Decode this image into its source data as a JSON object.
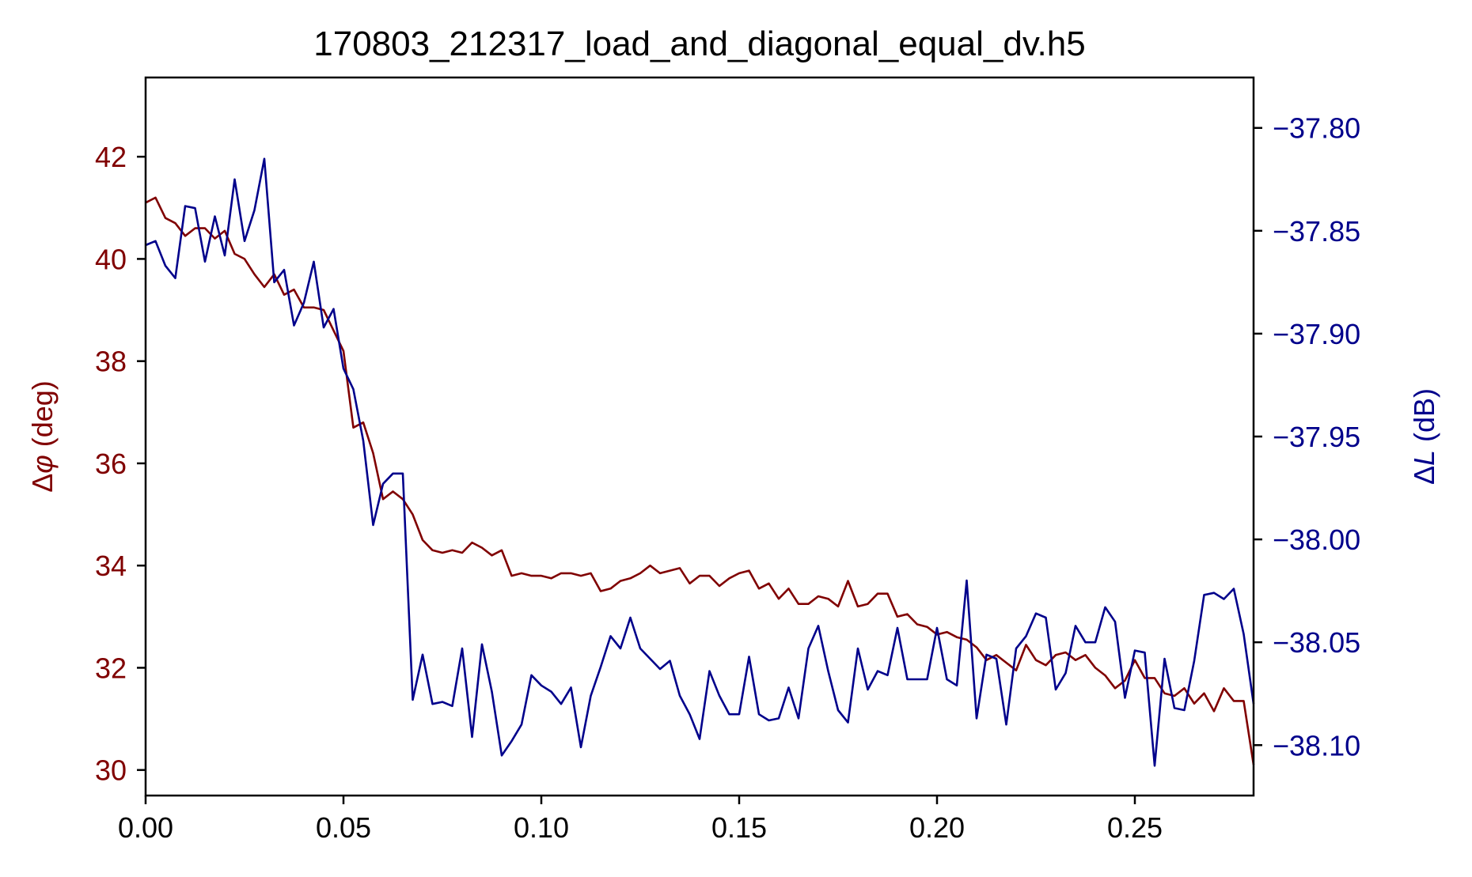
{
  "chart_data": {
    "type": "line",
    "title": "170803_212317_load_and_diagonal_equal_dv.h5",
    "xlabel": "",
    "xlim": [
      0.0,
      0.28
    ],
    "x_ticks": [
      "0.00",
      "0.05",
      "0.10",
      "0.15",
      "0.20",
      "0.25"
    ],
    "y_left": {
      "label": "Δφ (deg)",
      "label_delta": "Δ",
      "label_symbol": "φ",
      "label_unit": " (deg)",
      "ylim": [
        29.5,
        43.55
      ],
      "ticks": [
        "30",
        "32",
        "34",
        "36",
        "38",
        "40",
        "42"
      ],
      "color": "#800000"
    },
    "y_right": {
      "label": "ΔL (dB)",
      "label_delta": "Δ",
      "label_symbol": "L",
      "label_unit": " (dB)",
      "ylim": [
        -38.1245,
        -37.7755
      ],
      "ticks": [
        "−37.80",
        "−37.85",
        "−37.90",
        "−37.95",
        "−38.00",
        "−38.05",
        "−38.10"
      ],
      "color": "#00008b"
    },
    "series": [
      {
        "axis": "left",
        "color": "#800000",
        "x": [
          0.0,
          0.0025,
          0.005,
          0.0075,
          0.01,
          0.0125,
          0.015,
          0.0175,
          0.02,
          0.0225,
          0.025,
          0.0275,
          0.03,
          0.0325,
          0.035,
          0.0375,
          0.04,
          0.0425,
          0.045,
          0.0475,
          0.05,
          0.0525,
          0.055,
          0.0575,
          0.06,
          0.0625,
          0.065,
          0.0675,
          0.07,
          0.0725,
          0.075,
          0.0775,
          0.08,
          0.0825,
          0.085,
          0.0875,
          0.09,
          0.0925,
          0.095,
          0.0975,
          0.1,
          0.1025,
          0.105,
          0.1075,
          0.11,
          0.1125,
          0.115,
          0.1175,
          0.12,
          0.1225,
          0.125,
          0.1275,
          0.13,
          0.1325,
          0.135,
          0.1375,
          0.14,
          0.1425,
          0.145,
          0.1475,
          0.15,
          0.1525,
          0.155,
          0.1575,
          0.16,
          0.1625,
          0.165,
          0.1675,
          0.17,
          0.1725,
          0.175,
          0.1775,
          0.18,
          0.1825,
          0.185,
          0.1875,
          0.19,
          0.1925,
          0.195,
          0.1975,
          0.2,
          0.2025,
          0.205,
          0.2075,
          0.21,
          0.2125,
          0.215,
          0.2175,
          0.22,
          0.2225,
          0.225,
          0.2275,
          0.23,
          0.2325,
          0.235,
          0.2375,
          0.24,
          0.2425,
          0.245,
          0.2475,
          0.25,
          0.2525,
          0.255,
          0.2575,
          0.26,
          0.2625,
          0.265,
          0.2675,
          0.27,
          0.2725,
          0.275,
          0.2775,
          0.28
        ],
        "y": [
          41.1,
          41.2,
          40.8,
          40.7,
          40.45,
          40.6,
          40.6,
          40.4,
          40.55,
          40.1,
          40.0,
          39.7,
          39.45,
          39.7,
          39.3,
          39.4,
          39.05,
          39.05,
          39.0,
          38.6,
          38.2,
          36.7,
          36.8,
          36.2,
          35.3,
          35.45,
          35.3,
          35.0,
          34.5,
          34.3,
          34.25,
          34.3,
          34.25,
          34.45,
          34.35,
          34.2,
          34.3,
          33.8,
          33.85,
          33.8,
          33.8,
          33.75,
          33.85,
          33.85,
          33.8,
          33.85,
          33.5,
          33.55,
          33.7,
          33.75,
          33.85,
          34.0,
          33.85,
          33.9,
          33.95,
          33.65,
          33.8,
          33.8,
          33.6,
          33.75,
          33.85,
          33.9,
          33.55,
          33.65,
          33.35,
          33.55,
          33.25,
          33.25,
          33.4,
          33.35,
          33.2,
          33.7,
          33.2,
          33.25,
          33.45,
          33.45,
          33.0,
          33.05,
          32.85,
          32.8,
          32.65,
          32.7,
          32.6,
          32.55,
          32.4,
          32.15,
          32.25,
          32.1,
          31.95,
          32.45,
          32.15,
          32.05,
          32.25,
          32.3,
          32.15,
          32.25,
          32.0,
          31.85,
          31.6,
          31.75,
          32.15,
          31.8,
          31.8,
          31.5,
          31.45,
          31.6,
          31.3,
          31.5,
          31.15,
          31.6,
          31.35,
          31.35,
          30.1
        ]
      },
      {
        "axis": "right",
        "color": "#00008b",
        "x": [
          0.0,
          0.0025,
          0.005,
          0.0075,
          0.01,
          0.0125,
          0.015,
          0.0175,
          0.02,
          0.0225,
          0.025,
          0.0275,
          0.03,
          0.0325,
          0.035,
          0.0375,
          0.04,
          0.0425,
          0.045,
          0.0475,
          0.05,
          0.0525,
          0.055,
          0.0575,
          0.06,
          0.0625,
          0.065,
          0.0675,
          0.07,
          0.0725,
          0.075,
          0.0775,
          0.08,
          0.0825,
          0.085,
          0.0875,
          0.09,
          0.0925,
          0.095,
          0.0975,
          0.1,
          0.1025,
          0.105,
          0.1075,
          0.11,
          0.1125,
          0.115,
          0.1175,
          0.12,
          0.1225,
          0.125,
          0.1275,
          0.13,
          0.1325,
          0.135,
          0.1375,
          0.14,
          0.1425,
          0.145,
          0.1475,
          0.15,
          0.1525,
          0.155,
          0.1575,
          0.16,
          0.1625,
          0.165,
          0.1675,
          0.17,
          0.1725,
          0.175,
          0.1775,
          0.18,
          0.1825,
          0.185,
          0.1875,
          0.19,
          0.1925,
          0.195,
          0.1975,
          0.2,
          0.2025,
          0.205,
          0.2075,
          0.21,
          0.2125,
          0.215,
          0.2175,
          0.22,
          0.2225,
          0.225,
          0.2275,
          0.23,
          0.2325,
          0.235,
          0.2375,
          0.24,
          0.2425,
          0.245,
          0.2475,
          0.25,
          0.2525,
          0.255,
          0.2575,
          0.26,
          0.2625,
          0.265,
          0.2675,
          0.27,
          0.2725,
          0.275,
          0.2775,
          0.28
        ],
        "y": [
          -37.857,
          -37.855,
          -37.867,
          -37.873,
          -37.838,
          -37.839,
          -37.865,
          -37.843,
          -37.862,
          -37.825,
          -37.855,
          -37.84,
          -37.815,
          -37.875,
          -37.869,
          -37.896,
          -37.885,
          -37.865,
          -37.897,
          -37.888,
          -37.917,
          -37.927,
          -37.952,
          -37.993,
          -37.973,
          -37.968,
          -37.968,
          -38.078,
          -38.056,
          -38.08,
          -38.079,
          -38.081,
          -38.053,
          -38.096,
          -38.051,
          -38.074,
          -38.105,
          -38.098,
          -38.09,
          -38.066,
          -38.071,
          -38.074,
          -38.08,
          -38.072,
          -38.101,
          -38.076,
          -38.062,
          -38.047,
          -38.053,
          -38.038,
          -38.053,
          -38.058,
          -38.063,
          -38.059,
          -38.076,
          -38.085,
          -38.097,
          -38.064,
          -38.076,
          -38.085,
          -38.085,
          -38.057,
          -38.085,
          -38.088,
          -38.087,
          -38.072,
          -38.087,
          -38.053,
          -38.042,
          -38.064,
          -38.083,
          -38.089,
          -38.053,
          -38.073,
          -38.064,
          -38.066,
          -38.043,
          -38.068,
          -38.068,
          -38.068,
          -38.043,
          -38.068,
          -38.071,
          -38.02,
          -38.087,
          -38.056,
          -38.058,
          -38.09,
          -38.053,
          -38.047,
          -38.036,
          -38.038,
          -38.073,
          -38.065,
          -38.042,
          -38.05,
          -38.05,
          -38.033,
          -38.04,
          -38.077,
          -38.054,
          -38.055,
          -38.11,
          -38.058,
          -38.082,
          -38.083,
          -38.059,
          -38.027,
          -38.026,
          -38.029,
          -38.024,
          -38.046,
          -38.08
        ]
      }
    ]
  }
}
